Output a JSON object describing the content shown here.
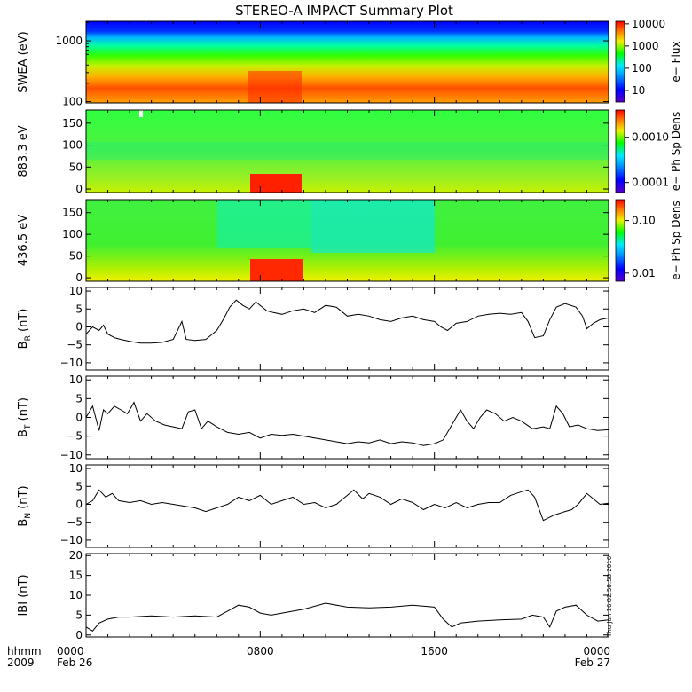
{
  "title": "STEREO-A IMPACT Summary Plot",
  "timestamp_text": "Thu Jun 16 02:58:58 2016",
  "colors": {
    "trace": "#000000",
    "frame": "#000000",
    "spectrogram_scale": [
      "#5a00c8",
      "#0000ff",
      "#00a8ff",
      "#00e8ff",
      "#00ff00",
      "#f0f000",
      "#ff7800",
      "#ff0000"
    ]
  },
  "time_axis": {
    "x_min_hours": 0,
    "x_max_hours": 24,
    "ticks": [
      {
        "hour": 0,
        "label_top": "0000",
        "label_bottom": "Feb 26"
      },
      {
        "hour": 8,
        "label_top": "0800",
        "label_bottom": ""
      },
      {
        "hour": 16,
        "label_top": "1600",
        "label_bottom": ""
      },
      {
        "hour": 24,
        "label_top": "0000",
        "label_bottom": "Feb 27"
      }
    ],
    "left_label_top": "hhmm",
    "left_label_bottom": "2009"
  },
  "chart_data": [
    {
      "type": "heatmap",
      "ylabel": "SWEA (eV)",
      "yscale": "log",
      "ylim": [
        95,
        2100
      ],
      "yticks": [
        100,
        1000
      ],
      "ytick_labels": [
        "100",
        "1000"
      ],
      "colorbar": {
        "label": "e− Flux",
        "scale": "log",
        "range": [
          3,
          13000
        ],
        "ticks": [
          10,
          100,
          1000,
          10000
        ],
        "tick_labels": [
          "10",
          "100",
          "1000",
          "10000"
        ]
      }
    },
    {
      "type": "heatmap",
      "ylabel": "883.3 eV",
      "ylim": [
        -8,
        180
      ],
      "yticks": [
        0,
        50,
        100,
        150
      ],
      "ytick_labels": [
        "0",
        "50",
        "100",
        "150"
      ],
      "colorbar": {
        "label": "e− Ph Sp Dens",
        "scale": "log",
        "range": [
          6e-05,
          0.004
        ],
        "ticks": [
          0.0001,
          0.001
        ],
        "tick_labels": [
          "0.0001",
          "0.0010"
        ]
      }
    },
    {
      "type": "heatmap",
      "ylabel": "436.5 eV",
      "ylim": [
        -8,
        180
      ],
      "yticks": [
        0,
        50,
        100,
        150
      ],
      "ytick_labels": [
        "0",
        "50",
        "100",
        "150"
      ],
      "colorbar": {
        "label": "e− Ph Sp Dens",
        "scale": "log",
        "range": [
          0.007,
          0.25
        ],
        "ticks": [
          0.01,
          0.1
        ],
        "tick_labels": [
          "0.01",
          "0.10"
        ]
      }
    },
    {
      "type": "line",
      "ylabel": "B",
      "ylabel_sub": "R",
      "ylabel_unit": "(nT)",
      "ylim": [
        -12,
        11
      ],
      "yticks": [
        -10,
        -5,
        0,
        5,
        10
      ],
      "ytick_labels": [
        "−10",
        "−5",
        "0",
        "5",
        "10"
      ],
      "x": [
        0,
        0.3,
        0.6,
        0.8,
        1.0,
        1.3,
        1.6,
        2.0,
        2.5,
        3.0,
        3.5,
        4.0,
        4.2,
        4.4,
        4.6,
        5.0,
        5.5,
        5.8,
        6.0,
        6.3,
        6.6,
        6.9,
        7.2,
        7.5,
        7.8,
        8.0,
        8.3,
        8.6,
        9.0,
        9.5,
        10.0,
        10.5,
        11.0,
        11.5,
        12.0,
        12.5,
        13.0,
        13.5,
        14.0,
        14.5,
        15.0,
        15.5,
        16.0,
        16.3,
        16.6,
        17.0,
        17.5,
        18.0,
        18.5,
        19.0,
        19.5,
        20.0,
        20.3,
        20.6,
        21.0,
        21.3,
        21.6,
        22.0,
        22.5,
        22.8,
        23.0,
        23.3,
        23.6,
        24.0
      ],
      "y": [
        -2,
        0,
        -1,
        0.5,
        -2,
        -3,
        -3.5,
        -4,
        -4.5,
        -4.5,
        -4.3,
        -3.5,
        -1,
        1.5,
        -3.5,
        -3.8,
        -3.5,
        -2,
        -1,
        2,
        5.5,
        7.5,
        6,
        5,
        7,
        6,
        4.5,
        4,
        3.5,
        4.5,
        5,
        4,
        6,
        5.5,
        3,
        3.5,
        3,
        2,
        1.5,
        2.5,
        3,
        2,
        1.5,
        0,
        -1,
        1,
        1.5,
        3,
        3.5,
        3.8,
        3.5,
        4,
        1.5,
        -3,
        -2.5,
        2,
        5.5,
        6.5,
        5.5,
        3,
        -0.5,
        1,
        2,
        2.5
      ],
      "series": [
        {
          "values": [
            -2,
            0,
            -1,
            0.5,
            -2,
            -3,
            -3.5,
            -4,
            -4.5,
            -4.5,
            -4.3,
            -3.5,
            -1,
            1.5,
            -3.5,
            -3.8,
            -3.5,
            -2,
            -1,
            2,
            5.5,
            7.5,
            6,
            5,
            7,
            6,
            4.5,
            4,
            3.5,
            4.5,
            5,
            4,
            6,
            5.5,
            3,
            3.5,
            3,
            2,
            1.5,
            2.5,
            3,
            2,
            1.5,
            0,
            -1,
            1,
            1.5,
            3,
            3.5,
            3.8,
            3.5,
            4,
            1.5,
            -3,
            -2.5,
            2,
            5.5,
            6.5,
            5.5,
            3,
            -0.5,
            1,
            2,
            2.5
          ]
        }
      ]
    },
    {
      "type": "line",
      "ylabel": "B",
      "ylabel_sub": "T",
      "ylabel_unit": "(nT)",
      "ylim": [
        -11,
        11
      ],
      "yticks": [
        -10,
        -5,
        0,
        5,
        10
      ],
      "ytick_labels": [
        "−10",
        "−5",
        "0",
        "5",
        "10"
      ],
      "x": [
        0,
        0.3,
        0.6,
        0.8,
        1.0,
        1.3,
        1.6,
        1.9,
        2.2,
        2.5,
        2.8,
        3.2,
        3.6,
        4.0,
        4.4,
        4.7,
        5.0,
        5.3,
        5.6,
        6.0,
        6.5,
        7.0,
        7.5,
        8.0,
        8.5,
        9.0,
        9.5,
        10.0,
        10.5,
        11.0,
        11.5,
        12.0,
        12.5,
        13.0,
        13.5,
        14.0,
        14.5,
        15.0,
        15.5,
        16.0,
        16.4,
        16.8,
        17.2,
        17.5,
        17.8,
        18.1,
        18.4,
        18.8,
        19.2,
        19.6,
        20.0,
        20.5,
        21.0,
        21.3,
        21.6,
        21.9,
        22.2,
        22.6,
        23.0,
        23.5,
        24.0
      ],
      "y": [
        0,
        3,
        -3.5,
        2,
        1,
        3,
        2,
        1,
        4,
        -1,
        1,
        -1,
        -2,
        -2.5,
        -3,
        1.5,
        2,
        -3,
        -1,
        -2.5,
        -4,
        -4.5,
        -4,
        -5.5,
        -4.5,
        -4.8,
        -4.5,
        -5,
        -5.5,
        -6,
        -6.5,
        -7,
        -6.5,
        -6.8,
        -6,
        -7,
        -6.5,
        -6.8,
        -7.5,
        -7,
        -6,
        -2,
        2,
        -1,
        -3,
        0,
        2,
        1,
        -1,
        0,
        -1,
        -3,
        -2.5,
        -3,
        3,
        1,
        -2.5,
        -2,
        -3,
        -3.5,
        -3.3
      ]
    },
    {
      "type": "line",
      "ylabel": "B",
      "ylabel_sub": "N",
      "ylabel_unit": "(nT)",
      "ylim": [
        -12,
        11
      ],
      "yticks": [
        -10,
        -5,
        0,
        5,
        10
      ],
      "ytick_labels": [
        "−10",
        "−5",
        "0",
        "5",
        "10"
      ],
      "x": [
        0,
        0.3,
        0.6,
        0.9,
        1.2,
        1.5,
        2.0,
        2.5,
        3.0,
        3.5,
        4.0,
        4.5,
        5.0,
        5.5,
        6.0,
        6.5,
        7.0,
        7.5,
        8.0,
        8.5,
        9.0,
        9.5,
        10.0,
        10.5,
        11.0,
        11.5,
        12.0,
        12.3,
        12.7,
        13.0,
        13.5,
        14.0,
        14.5,
        15.0,
        15.5,
        16.0,
        16.5,
        17.0,
        17.5,
        18.0,
        18.5,
        19.0,
        19.5,
        20.0,
        20.3,
        20.6,
        21.0,
        21.5,
        22.0,
        22.3,
        22.6,
        23.0,
        23.3,
        23.6,
        24.0
      ],
      "y": [
        0,
        1,
        4,
        2,
        3,
        1,
        0.5,
        1,
        0,
        0.5,
        0,
        -0.5,
        -1,
        -2,
        -1,
        0,
        2,
        1,
        2.5,
        0,
        1,
        2,
        0,
        0.5,
        -1,
        0,
        2.5,
        4,
        1.5,
        3,
        2,
        0,
        1.5,
        0.5,
        -1.5,
        0,
        -1,
        0.5,
        -1,
        0,
        0.5,
        0.5,
        2.5,
        3.5,
        4,
        2,
        -4.5,
        -3,
        -2,
        -1.5,
        0,
        3,
        1.5,
        0,
        0.3
      ]
    },
    {
      "type": "line",
      "ylabel": "IBI",
      "ylabel_unit": "(nT)",
      "ylim": [
        -0.5,
        20.5
      ],
      "yticks": [
        0,
        5,
        10,
        15,
        20
      ],
      "ytick_labels": [
        "0",
        "5",
        "10",
        "15",
        "20"
      ],
      "x": [
        0,
        0.3,
        0.6,
        1.0,
        1.5,
        2.0,
        3.0,
        4.0,
        5.0,
        6.0,
        6.5,
        7.0,
        7.5,
        8.0,
        8.5,
        9.0,
        10.0,
        11.0,
        12.0,
        13.0,
        14.0,
        15.0,
        16.0,
        16.4,
        16.8,
        17.2,
        18.0,
        19.0,
        20.0,
        20.5,
        21.0,
        21.3,
        21.6,
        22.0,
        22.5,
        23.0,
        23.5,
        24.0
      ],
      "y": [
        2,
        1,
        3,
        4,
        4.5,
        4.5,
        4.8,
        4.5,
        4.8,
        4.5,
        6,
        7.5,
        7,
        5.5,
        5,
        5.5,
        6.5,
        8,
        7,
        6.8,
        7,
        7.5,
        7,
        4,
        2,
        3,
        3.5,
        3.8,
        4,
        5,
        4.5,
        2,
        6,
        7,
        7.5,
        5,
        3.5,
        3.8
      ]
    }
  ]
}
